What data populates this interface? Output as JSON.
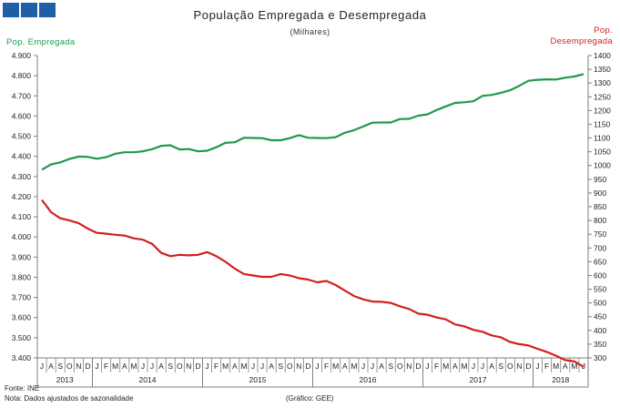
{
  "logo": {
    "blocks": 3,
    "color": "#1f5fa8"
  },
  "footer": {
    "source": "Fonte: INE",
    "note": "Nota: Dados ajustados de sazonalidade",
    "credit": "(Gráfico: GEE)"
  },
  "colors": {
    "employed": "#1e9a4b",
    "unemployed": "#d21f1f",
    "axis": "#7f7f7f",
    "text": "#222222"
  },
  "chart_data": {
    "type": "line",
    "title": "População Empregada e Desempregada",
    "subtitle": "(Milhares)",
    "y_left_label": "Pop. Empregada",
    "y_right_label": [
      "Pop.",
      "Desempregada"
    ],
    "y_left_lim": [
      3400,
      4900
    ],
    "y_left_ticks": [
      "3.400",
      "3.500",
      "3.600",
      "3.700",
      "3.800",
      "3.900",
      "4.000",
      "4.100",
      "4.200",
      "4.300",
      "4.400",
      "4.500",
      "4.600",
      "4.700",
      "4.800",
      "4.900"
    ],
    "y_right_lim": [
      300,
      1400
    ],
    "y_right_ticks": [
      "300",
      "350",
      "400",
      "450",
      "500",
      "550",
      "600",
      "650",
      "700",
      "750",
      "800",
      "850",
      "900",
      "950",
      "1000",
      "1050",
      "1100",
      "1150",
      "1200",
      "1250",
      "1300",
      "1350",
      "1400"
    ],
    "x_months": [
      "J",
      "A",
      "S",
      "O",
      "N",
      "D",
      "J",
      "F",
      "M",
      "A",
      "M",
      "J",
      "J",
      "A",
      "S",
      "O",
      "N",
      "D",
      "J",
      "F",
      "M",
      "A",
      "M",
      "J",
      "J",
      "A",
      "S",
      "O",
      "N",
      "D",
      "J",
      "F",
      "M",
      "A",
      "M",
      "J",
      "J",
      "A",
      "S",
      "O",
      "N",
      "D",
      "J",
      "F",
      "M",
      "A",
      "M",
      "J",
      "J",
      "A",
      "S",
      "O",
      "N",
      "D",
      "J",
      "F",
      "M",
      "A",
      "M",
      "J"
    ],
    "x_years": [
      {
        "label": "2013",
        "start": 0,
        "count": 6
      },
      {
        "label": "2014",
        "start": 6,
        "count": 12
      },
      {
        "label": "2015",
        "start": 18,
        "count": 12
      },
      {
        "label": "2016",
        "start": 30,
        "count": 12
      },
      {
        "label": "2017",
        "start": 42,
        "count": 12
      },
      {
        "label": "2018",
        "start": 54,
        "count": 6
      }
    ],
    "grid": false,
    "series": [
      {
        "name": "Pop. Empregada",
        "axis": "left",
        "values": [
          4334,
          4360,
          4370,
          4387,
          4399,
          4397,
          4388,
          4396,
          4413,
          4420,
          4420,
          4425,
          4435,
          4452,
          4455,
          4434,
          4436,
          4425,
          4428,
          4445,
          4467,
          4470,
          4492,
          4491,
          4490,
          4480,
          4480,
          4490,
          4505,
          4492,
          4491,
          4490,
          4495,
          4517,
          4530,
          4548,
          4567,
          4568,
          4568,
          4585,
          4586,
          4602,
          4608,
          4630,
          4648,
          4665,
          4668,
          4673,
          4700,
          4705,
          4715,
          4728,
          4750,
          4775,
          4780,
          4782,
          4781,
          4790,
          4796,
          4808
        ]
      },
      {
        "name": "Pop. Desempregada",
        "axis": "right",
        "values": [
          875,
          830,
          808,
          800,
          790,
          770,
          755,
          752,
          748,
          745,
          735,
          730,
          715,
          682,
          670,
          675,
          673,
          675,
          685,
          670,
          650,
          625,
          605,
          600,
          595,
          595,
          605,
          600,
          590,
          585,
          575,
          580,
          565,
          545,
          525,
          513,
          505,
          504,
          500,
          488,
          478,
          461,
          457,
          447,
          440,
          422,
          415,
          402,
          395,
          382,
          375,
          358,
          350,
          345,
          333,
          322,
          308,
          292,
          287,
          268
        ]
      }
    ]
  }
}
